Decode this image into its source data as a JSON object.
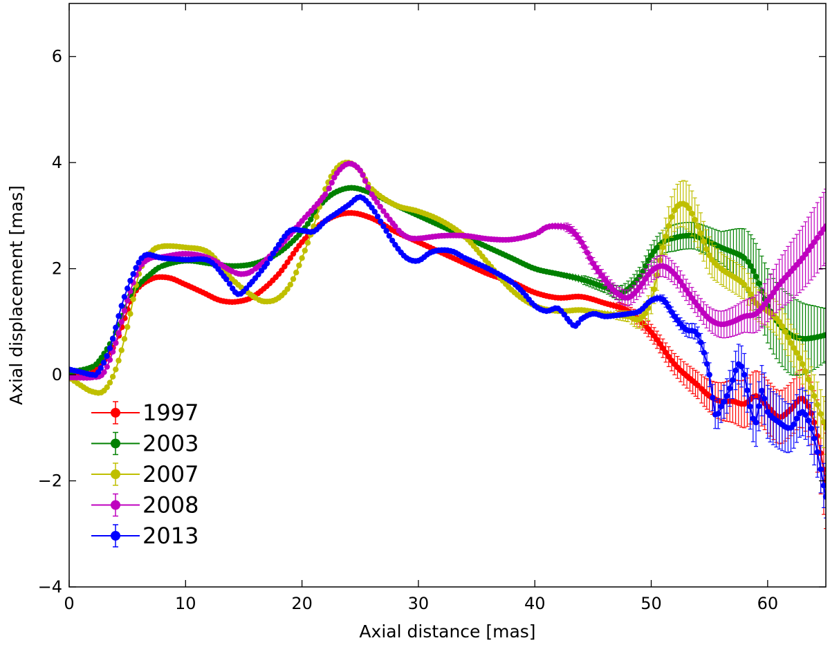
{
  "chart_data": {
    "type": "line",
    "title": "",
    "xlabel": "Axial distance [mas]",
    "ylabel": "Axial displacement [mas]",
    "xlim": [
      0,
      65
    ],
    "ylim": [
      -4,
      7
    ],
    "xticks": [
      0,
      10,
      20,
      30,
      40,
      50,
      60
    ],
    "yticks": [
      -4,
      -2,
      0,
      2,
      4,
      6
    ],
    "xtick_labels": [
      "0",
      "10",
      "20",
      "30",
      "40",
      "50",
      "60"
    ],
    "ytick_labels": [
      "−4",
      "−2",
      "0",
      "2",
      "4",
      "6"
    ],
    "legend_position": "lower-left",
    "grid": false,
    "series": [
      {
        "name": "1997",
        "color": "#ff0000",
        "points": [
          [
            0,
            0.0
          ],
          [
            2,
            0.05
          ],
          [
            4,
            0.6
          ],
          [
            5.5,
            1.5
          ],
          [
            7,
            1.8
          ],
          [
            8.5,
            1.83
          ],
          [
            10,
            1.7
          ],
          [
            11.5,
            1.55
          ],
          [
            13,
            1.4
          ],
          [
            14.5,
            1.38
          ],
          [
            16,
            1.5
          ],
          [
            18,
            1.9
          ],
          [
            20,
            2.5
          ],
          [
            22,
            2.9
          ],
          [
            24,
            3.05
          ],
          [
            26,
            2.95
          ],
          [
            28,
            2.7
          ],
          [
            30,
            2.5
          ],
          [
            32,
            2.3
          ],
          [
            34,
            2.1
          ],
          [
            36,
            1.9
          ],
          [
            38,
            1.75
          ],
          [
            40,
            1.55
          ],
          [
            42,
            1.45
          ],
          [
            44,
            1.47
          ],
          [
            46,
            1.35
          ],
          [
            48,
            1.2
          ],
          [
            50,
            0.8
          ],
          [
            52,
            0.2
          ],
          [
            54,
            -0.2
          ],
          [
            55,
            -0.4
          ],
          [
            56,
            -0.5
          ],
          [
            57,
            -0.5
          ],
          [
            58,
            -0.55
          ],
          [
            59,
            -0.4
          ],
          [
            60,
            -0.6
          ],
          [
            61,
            -0.8
          ],
          [
            62,
            -0.65
          ],
          [
            63,
            -0.45
          ],
          [
            64,
            -0.9
          ],
          [
            65,
            -2.0
          ]
        ],
        "errors": [
          [
            50,
            0.15
          ],
          [
            52,
            0.2
          ],
          [
            54,
            0.25
          ],
          [
            56,
            0.35
          ],
          [
            58,
            0.45
          ],
          [
            60,
            0.5
          ],
          [
            62,
            0.5
          ],
          [
            64,
            0.6
          ],
          [
            65,
            0.9
          ]
        ]
      },
      {
        "name": "2003",
        "color": "#008000",
        "points": [
          [
            0,
            0.05
          ],
          [
            2,
            0.15
          ],
          [
            3,
            0.4
          ],
          [
            4,
            0.8
          ],
          [
            5,
            1.4
          ],
          [
            6,
            1.7
          ],
          [
            7,
            1.9
          ],
          [
            8,
            2.05
          ],
          [
            10,
            2.15
          ],
          [
            12,
            2.1
          ],
          [
            14,
            2.05
          ],
          [
            16,
            2.1
          ],
          [
            18,
            2.3
          ],
          [
            20,
            2.7
          ],
          [
            22,
            3.3
          ],
          [
            24,
            3.52
          ],
          [
            26,
            3.42
          ],
          [
            28,
            3.2
          ],
          [
            30,
            3.0
          ],
          [
            32,
            2.8
          ],
          [
            34,
            2.6
          ],
          [
            36,
            2.4
          ],
          [
            38,
            2.2
          ],
          [
            40,
            2.0
          ],
          [
            42,
            1.9
          ],
          [
            44,
            1.8
          ],
          [
            46,
            1.65
          ],
          [
            47.5,
            1.55
          ],
          [
            49,
            1.85
          ],
          [
            50,
            2.25
          ],
          [
            51,
            2.5
          ],
          [
            52,
            2.58
          ],
          [
            53,
            2.62
          ],
          [
            54,
            2.6
          ],
          [
            56,
            2.4
          ],
          [
            58,
            2.2
          ],
          [
            59,
            1.85
          ],
          [
            60,
            1.3
          ],
          [
            61,
            0.95
          ],
          [
            62,
            0.75
          ],
          [
            63,
            0.68
          ],
          [
            64,
            0.7
          ],
          [
            65,
            0.75
          ]
        ],
        "errors": [
          [
            44,
            0.08
          ],
          [
            46,
            0.1
          ],
          [
            48,
            0.15
          ],
          [
            50,
            0.2
          ],
          [
            52,
            0.25
          ],
          [
            54,
            0.25
          ],
          [
            56,
            0.3
          ],
          [
            58,
            0.55
          ],
          [
            60,
            0.7
          ],
          [
            62,
            0.75
          ],
          [
            64,
            0.6
          ],
          [
            65,
            0.5
          ]
        ]
      },
      {
        "name": "2007",
        "color": "#bfbf00",
        "points": [
          [
            0,
            -0.05
          ],
          [
            1,
            -0.2
          ],
          [
            2,
            -0.32
          ],
          [
            3,
            -0.3
          ],
          [
            4,
            0.1
          ],
          [
            5,
            0.9
          ],
          [
            6,
            1.9
          ],
          [
            7,
            2.3
          ],
          [
            8,
            2.42
          ],
          [
            10,
            2.4
          ],
          [
            12,
            2.3
          ],
          [
            14,
            1.8
          ],
          [
            16,
            1.45
          ],
          [
            17,
            1.38
          ],
          [
            18,
            1.45
          ],
          [
            19,
            1.7
          ],
          [
            20,
            2.2
          ],
          [
            21,
            2.8
          ],
          [
            22,
            3.5
          ],
          [
            23,
            3.9
          ],
          [
            24,
            4.0
          ],
          [
            25,
            3.85
          ],
          [
            26,
            3.5
          ],
          [
            28,
            3.2
          ],
          [
            30,
            3.08
          ],
          [
            32,
            2.9
          ],
          [
            34,
            2.6
          ],
          [
            36,
            2.1
          ],
          [
            38,
            1.6
          ],
          [
            40,
            1.3
          ],
          [
            42,
            1.2
          ],
          [
            44,
            1.22
          ],
          [
            46,
            1.15
          ],
          [
            48,
            1.1
          ],
          [
            49,
            1.05
          ],
          [
            50,
            1.4
          ],
          [
            51,
            2.4
          ],
          [
            52,
            3.1
          ],
          [
            53,
            3.2
          ],
          [
            54,
            2.8
          ],
          [
            55,
            2.25
          ],
          [
            56,
            2.0
          ],
          [
            58,
            1.7
          ],
          [
            59,
            1.35
          ],
          [
            60,
            1.2
          ],
          [
            61,
            1.0
          ],
          [
            62,
            0.6
          ],
          [
            63,
            0.2
          ],
          [
            64,
            -0.4
          ],
          [
            65,
            -1.0
          ]
        ],
        "errors": [
          [
            48,
            0.1
          ],
          [
            50,
            0.25
          ],
          [
            52,
            0.4
          ],
          [
            53,
            0.45
          ],
          [
            54,
            0.4
          ],
          [
            56,
            0.3
          ],
          [
            58,
            0.3
          ],
          [
            60,
            0.3
          ],
          [
            62,
            0.35
          ],
          [
            64,
            0.4
          ],
          [
            65,
            0.5
          ]
        ]
      },
      {
        "name": "2008",
        "color": "#bf00bf",
        "points": [
          [
            0,
            -0.05
          ],
          [
            2,
            -0.05
          ],
          [
            3,
            0.05
          ],
          [
            4,
            0.6
          ],
          [
            5,
            1.4
          ],
          [
            6,
            2.0
          ],
          [
            7,
            2.2
          ],
          [
            8,
            2.22
          ],
          [
            10,
            2.28
          ],
          [
            12,
            2.2
          ],
          [
            14,
            1.95
          ],
          [
            15,
            1.9
          ],
          [
            16,
            2.0
          ],
          [
            18,
            2.4
          ],
          [
            20,
            2.9
          ],
          [
            22,
            3.4
          ],
          [
            23,
            3.8
          ],
          [
            24,
            3.98
          ],
          [
            25,
            3.85
          ],
          [
            26,
            3.4
          ],
          [
            28,
            2.8
          ],
          [
            29,
            2.6
          ],
          [
            30,
            2.57
          ],
          [
            32,
            2.62
          ],
          [
            34,
            2.62
          ],
          [
            36,
            2.56
          ],
          [
            38,
            2.55
          ],
          [
            40,
            2.65
          ],
          [
            41,
            2.78
          ],
          [
            42,
            2.8
          ],
          [
            43,
            2.75
          ],
          [
            44,
            2.5
          ],
          [
            45,
            2.1
          ],
          [
            46,
            1.8
          ],
          [
            47,
            1.55
          ],
          [
            48,
            1.45
          ],
          [
            49,
            1.65
          ],
          [
            50,
            1.95
          ],
          [
            51,
            2.05
          ],
          [
            52,
            1.9
          ],
          [
            53,
            1.6
          ],
          [
            54,
            1.3
          ],
          [
            55,
            1.05
          ],
          [
            56,
            0.95
          ],
          [
            57,
            1.0
          ],
          [
            58,
            1.1
          ],
          [
            59,
            1.15
          ],
          [
            60,
            1.4
          ],
          [
            61,
            1.7
          ],
          [
            62,
            1.95
          ],
          [
            63,
            2.2
          ],
          [
            64,
            2.5
          ],
          [
            65,
            2.8
          ]
        ],
        "errors": [
          [
            42,
            0.07
          ],
          [
            44,
            0.1
          ],
          [
            46,
            0.12
          ],
          [
            48,
            0.15
          ],
          [
            50,
            0.2
          ],
          [
            52,
            0.2
          ],
          [
            54,
            0.2
          ],
          [
            56,
            0.25
          ],
          [
            58,
            0.3
          ],
          [
            60,
            0.4
          ],
          [
            62,
            0.55
          ],
          [
            64,
            0.65
          ],
          [
            65,
            0.7
          ]
        ]
      },
      {
        "name": "2013",
        "color": "#0000ff",
        "points": [
          [
            0,
            0.1
          ],
          [
            1,
            0.05
          ],
          [
            2,
            0.0
          ],
          [
            2.5,
            0.05
          ],
          [
            3.5,
            0.5
          ],
          [
            4.5,
            1.3
          ],
          [
            5.5,
            1.9
          ],
          [
            6.5,
            2.25
          ],
          [
            8,
            2.2
          ],
          [
            10,
            2.17
          ],
          [
            12,
            2.15
          ],
          [
            13.5,
            1.8
          ],
          [
            14.5,
            1.52
          ],
          [
            15.5,
            1.7
          ],
          [
            17,
            2.1
          ],
          [
            18,
            2.45
          ],
          [
            19,
            2.72
          ],
          [
            20,
            2.72
          ],
          [
            21,
            2.7
          ],
          [
            22,
            2.9
          ],
          [
            23,
            3.05
          ],
          [
            24,
            3.2
          ],
          [
            25,
            3.35
          ],
          [
            26,
            3.15
          ],
          [
            27,
            2.8
          ],
          [
            28,
            2.45
          ],
          [
            29,
            2.2
          ],
          [
            30,
            2.15
          ],
          [
            31,
            2.3
          ],
          [
            32,
            2.35
          ],
          [
            33,
            2.32
          ],
          [
            34,
            2.2
          ],
          [
            36,
            2.0
          ],
          [
            38,
            1.75
          ],
          [
            39,
            1.55
          ],
          [
            40,
            1.3
          ],
          [
            41,
            1.2
          ],
          [
            42,
            1.25
          ],
          [
            43,
            1.0
          ],
          [
            43.5,
            0.92
          ],
          [
            44,
            1.05
          ],
          [
            45,
            1.15
          ],
          [
            46,
            1.1
          ],
          [
            47,
            1.12
          ],
          [
            48,
            1.15
          ],
          [
            49,
            1.2
          ],
          [
            50,
            1.4
          ],
          [
            51,
            1.42
          ],
          [
            52,
            1.1
          ],
          [
            53,
            0.85
          ],
          [
            54,
            0.75
          ],
          [
            55,
            0.0
          ],
          [
            55.5,
            -0.75
          ],
          [
            56,
            -0.6
          ],
          [
            56.5,
            -0.4
          ],
          [
            57,
            -0.1
          ],
          [
            57.5,
            0.2
          ],
          [
            58,
            0.0
          ],
          [
            58.5,
            -0.6
          ],
          [
            59,
            -0.9
          ],
          [
            59.5,
            -0.3
          ],
          [
            60,
            -0.7
          ],
          [
            61,
            -0.9
          ],
          [
            62,
            -1.0
          ],
          [
            63,
            -0.7
          ],
          [
            64,
            -1.2
          ],
          [
            65,
            -2.3
          ]
        ],
        "errors": [
          [
            52,
            0.1
          ],
          [
            54,
            0.15
          ],
          [
            56,
            0.3
          ],
          [
            57,
            0.35
          ],
          [
            58,
            0.4
          ],
          [
            59,
            0.45
          ],
          [
            60,
            0.5
          ],
          [
            61,
            0.5
          ],
          [
            62,
            0.45
          ],
          [
            63,
            0.45
          ],
          [
            64,
            0.5
          ],
          [
            65,
            0.4
          ]
        ]
      }
    ]
  }
}
